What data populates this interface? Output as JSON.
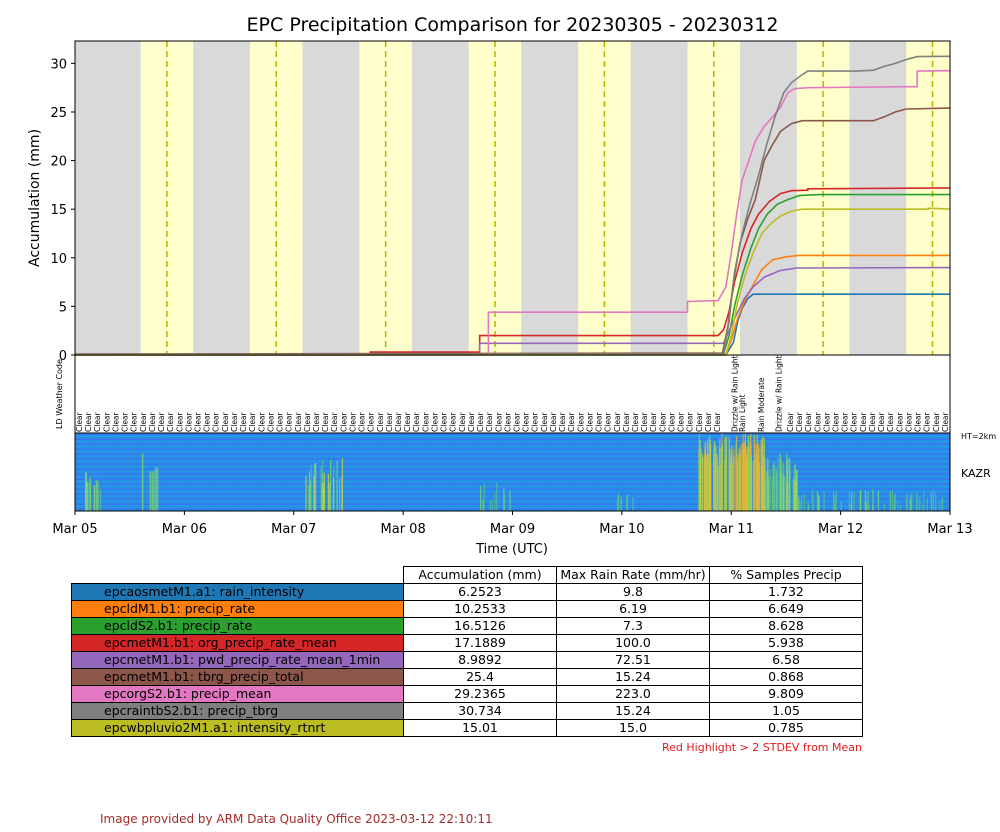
{
  "title": "EPC Precipitation Comparison for 20230305 - 20230312",
  "chart_data": {
    "type": "line",
    "title": "EPC Precipitation Comparison for 20230305 - 20230312",
    "xlabel": "Time (UTC)",
    "ylabel": "Accumulation (mm)",
    "xlim": [
      "2023-03-05",
      "2023-03-13"
    ],
    "ylim": [
      0,
      32.3
    ],
    "x_ticks": [
      "Mar 05",
      "Mar 06",
      "Mar 07",
      "Mar 08",
      "Mar 09",
      "Mar 10",
      "Mar 11",
      "Mar 12",
      "Mar 13"
    ],
    "y_ticks": [
      0,
      5,
      10,
      15,
      20,
      25,
      30
    ],
    "background_bands": [
      {
        "color": "#d9d9d9",
        "meaning": "night"
      },
      {
        "color": "#ffffcc",
        "meaning": "day"
      }
    ],
    "day_bands": [
      [
        5.6,
        6.08
      ],
      [
        6.6,
        7.08
      ],
      [
        7.6,
        8.08
      ],
      [
        8.6,
        9.08
      ],
      [
        9.6,
        10.08
      ],
      [
        10.6,
        11.08
      ],
      [
        11.6,
        12.08
      ],
      [
        12.6,
        13.0
      ]
    ],
    "solar_noon_lines": [
      5.84,
      6.84,
      7.84,
      8.84,
      9.84,
      10.84,
      11.84,
      12.84
    ],
    "series": [
      {
        "label": "epcaosmetM1.a1: rain_intensity",
        "color": "#1f77b4",
        "points": [
          [
            5.0,
            0
          ],
          [
            10.95,
            0
          ],
          [
            11.02,
            1.3
          ],
          [
            11.06,
            3.5
          ],
          [
            11.1,
            4.8
          ],
          [
            11.15,
            5.8
          ],
          [
            11.2,
            6.25
          ],
          [
            13.0,
            6.25
          ]
        ]
      },
      {
        "label": "epcldM1.b1: precip_rate",
        "color": "#ff7f0e",
        "points": [
          [
            5.0,
            0.05
          ],
          [
            10.95,
            0.1
          ],
          [
            11.0,
            1.5
          ],
          [
            11.05,
            3.5
          ],
          [
            11.12,
            5.5
          ],
          [
            11.2,
            7.2
          ],
          [
            11.28,
            8.8
          ],
          [
            11.38,
            9.8
          ],
          [
            11.5,
            10.1
          ],
          [
            11.62,
            10.25
          ],
          [
            13.0,
            10.25
          ]
        ]
      },
      {
        "label": "epcldS2.b1: precip_rate",
        "color": "#2ca02c",
        "points": [
          [
            5.0,
            0.05
          ],
          [
            10.93,
            0.1
          ],
          [
            10.98,
            2.0
          ],
          [
            11.03,
            5.0
          ],
          [
            11.1,
            8.2
          ],
          [
            11.18,
            11.0
          ],
          [
            11.25,
            13.0
          ],
          [
            11.33,
            14.5
          ],
          [
            11.42,
            15.5
          ],
          [
            11.52,
            16.0
          ],
          [
            11.62,
            16.4
          ],
          [
            11.8,
            16.5
          ],
          [
            13.0,
            16.5
          ]
        ]
      },
      {
        "label": "epcmetM1.b1: org_precip_rate_mean",
        "color": "#d62728",
        "points": [
          [
            5.0,
            0
          ],
          [
            7.7,
            0
          ],
          [
            7.7,
            0.3
          ],
          [
            8.7,
            0.3
          ],
          [
            8.7,
            2.0
          ],
          [
            10.88,
            2.0
          ],
          [
            10.93,
            2.6
          ],
          [
            10.98,
            4.5
          ],
          [
            11.03,
            7.5
          ],
          [
            11.1,
            10.5
          ],
          [
            11.18,
            13.0
          ],
          [
            11.25,
            14.5
          ],
          [
            11.35,
            15.8
          ],
          [
            11.45,
            16.6
          ],
          [
            11.55,
            16.9
          ],
          [
            11.7,
            16.95
          ],
          [
            11.7,
            17.1
          ],
          [
            13.0,
            17.19
          ]
        ]
      },
      {
        "label": "epcmetM1.b1: pwd_precip_rate_mean_1min",
        "color": "#9467bd",
        "points": [
          [
            5.0,
            0
          ],
          [
            8.7,
            0
          ],
          [
            8.7,
            1.2
          ],
          [
            10.93,
            1.2
          ],
          [
            10.98,
            2.5
          ],
          [
            11.05,
            4.2
          ],
          [
            11.12,
            5.8
          ],
          [
            11.2,
            7.0
          ],
          [
            11.3,
            8.0
          ],
          [
            11.45,
            8.7
          ],
          [
            11.6,
            8.95
          ],
          [
            13.0,
            8.99
          ]
        ]
      },
      {
        "label": "epcmetM1.b1: tbrg_precip_total",
        "color": "#8c564b",
        "points": [
          [
            5.0,
            0.1
          ],
          [
            10.92,
            0.2
          ],
          [
            10.97,
            3.0
          ],
          [
            11.02,
            7.5
          ],
          [
            11.08,
            11.5
          ],
          [
            11.15,
            14.0
          ],
          [
            11.22,
            16.0
          ],
          [
            11.3,
            20.0
          ],
          [
            11.37,
            21.5
          ],
          [
            11.45,
            23.0
          ],
          [
            11.55,
            23.8
          ],
          [
            11.65,
            24.1
          ],
          [
            12.3,
            24.1
          ],
          [
            12.4,
            24.5
          ],
          [
            12.5,
            25.0
          ],
          [
            12.6,
            25.3
          ],
          [
            13.0,
            25.4
          ]
        ]
      },
      {
        "label": "epcorgS2.b1: precip_mean",
        "color": "#e377c2",
        "points": [
          [
            5.0,
            0
          ],
          [
            8.78,
            0
          ],
          [
            8.78,
            4.4
          ],
          [
            10.6,
            4.4
          ],
          [
            10.6,
            5.5
          ],
          [
            10.88,
            5.6
          ],
          [
            10.95,
            7.0
          ],
          [
            11.0,
            10.5
          ],
          [
            11.05,
            14.5
          ],
          [
            11.1,
            18.0
          ],
          [
            11.16,
            20.0
          ],
          [
            11.22,
            22.0
          ],
          [
            11.3,
            23.5
          ],
          [
            11.38,
            24.5
          ],
          [
            11.45,
            25.5
          ],
          [
            11.52,
            27.0
          ],
          [
            11.58,
            27.4
          ],
          [
            11.7,
            27.5
          ],
          [
            12.6,
            27.6
          ],
          [
            12.7,
            27.6
          ],
          [
            12.7,
            29.2
          ],
          [
            13.0,
            29.24
          ]
        ]
      },
      {
        "label": "epcraintbS2.b1: precip_tbrg",
        "color": "#7f7f7f",
        "points": [
          [
            5.0,
            0.05
          ],
          [
            10.93,
            0.1
          ],
          [
            10.98,
            3.5
          ],
          [
            11.03,
            8.5
          ],
          [
            11.1,
            12.5
          ],
          [
            11.17,
            15.5
          ],
          [
            11.25,
            18.5
          ],
          [
            11.32,
            21.5
          ],
          [
            11.4,
            24.5
          ],
          [
            11.48,
            27.0
          ],
          [
            11.55,
            28.0
          ],
          [
            11.63,
            28.7
          ],
          [
            11.7,
            29.2
          ],
          [
            12.15,
            29.2
          ],
          [
            12.3,
            29.3
          ],
          [
            12.4,
            29.7
          ],
          [
            12.5,
            30.0
          ],
          [
            12.6,
            30.4
          ],
          [
            12.7,
            30.7
          ],
          [
            13.0,
            30.73
          ]
        ]
      },
      {
        "label": "epcwbpluvio2M1.a1: intensity_rtnrt",
        "color": "#bcbd22",
        "points": [
          [
            5.0,
            0
          ],
          [
            10.95,
            0
          ],
          [
            11.0,
            2.0
          ],
          [
            11.05,
            5.0
          ],
          [
            11.12,
            8.0
          ],
          [
            11.2,
            10.5
          ],
          [
            11.28,
            12.5
          ],
          [
            11.36,
            13.5
          ],
          [
            11.45,
            14.3
          ],
          [
            11.55,
            14.8
          ],
          [
            11.65,
            15.0
          ],
          [
            12.8,
            15.0
          ],
          [
            12.8,
            15.1
          ],
          [
            13.0,
            15.01
          ]
        ]
      }
    ]
  },
  "weather_codes": {
    "axis_label": "LD Weather Code",
    "default_label": "Clear",
    "count": 96,
    "special": [
      {
        "x": 11.03,
        "label": "Drizzle w/ Rain Light"
      },
      {
        "x": 11.1,
        "label": "Rain Light"
      },
      {
        "x": 11.27,
        "label": "Rain Moderate"
      },
      {
        "x": 11.43,
        "label": "Drizzle w/ Rain Light"
      }
    ]
  },
  "kazr": {
    "label": "KAZR",
    "height_label": "HT=2km"
  },
  "table": {
    "headers": [
      "Accumulation (mm)",
      "Max Rain Rate (mm/hr)",
      "% Samples Precip"
    ],
    "rows": [
      {
        "label": "epcaosmetM1.a1: rain_intensity",
        "color": "#1f77b4",
        "values": [
          "6.2523",
          "9.8",
          "1.732"
        ]
      },
      {
        "label": "epcldM1.b1: precip_rate",
        "color": "#ff7f0e",
        "values": [
          "10.2533",
          "6.19",
          "6.649"
        ]
      },
      {
        "label": "epcldS2.b1: precip_rate",
        "color": "#2ca02c",
        "values": [
          "16.5126",
          "7.3",
          "8.628"
        ]
      },
      {
        "label": "epcmetM1.b1: org_precip_rate_mean",
        "color": "#d62728",
        "values": [
          "17.1889",
          "100.0",
          "5.938"
        ]
      },
      {
        "label": "epcmetM1.b1: pwd_precip_rate_mean_1min",
        "color": "#9467bd",
        "values": [
          "8.9892",
          "72.51",
          "6.58"
        ]
      },
      {
        "label": "epcmetM1.b1: tbrg_precip_total",
        "color": "#8c564b",
        "values": [
          "25.4",
          "15.24",
          "0.868"
        ]
      },
      {
        "label": "epcorgS2.b1: precip_mean",
        "color": "#e377c2",
        "values": [
          "29.2365",
          "223.0",
          "9.809"
        ]
      },
      {
        "label": "epcraintbS2.b1: precip_tbrg",
        "color": "#7f7f7f",
        "values": [
          "30.734",
          "15.24",
          "1.05"
        ]
      },
      {
        "label": "epcwbpluvio2M1.a1: intensity_rtnrt",
        "color": "#bcbd22",
        "values": [
          "15.01",
          "15.0",
          "0.785"
        ]
      }
    ],
    "note": "Red Highlight > 2 STDEV from Mean"
  },
  "credit": "Image provided by ARM Data Quality Office 2023-03-12 22:10:11"
}
